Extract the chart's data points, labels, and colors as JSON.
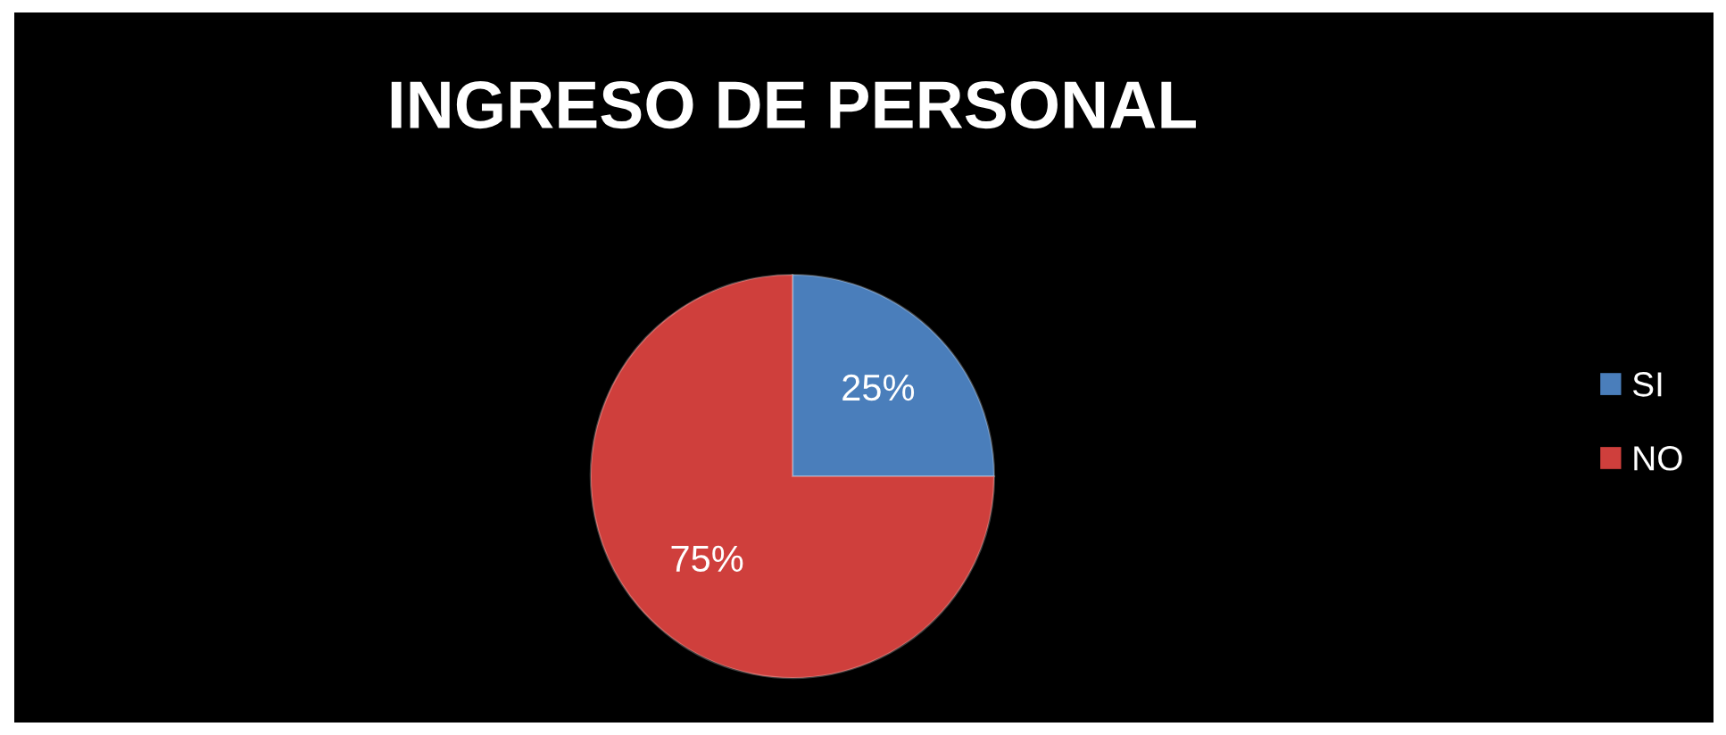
{
  "chart_data": {
    "type": "pie",
    "title": "INGRESO DE PERSONAL",
    "categories": [
      "SI",
      "NO"
    ],
    "values": [
      25,
      75
    ],
    "colors": [
      "#4a7ebb",
      "#cf3f3c"
    ],
    "value_labels": [
      "25%",
      "75%"
    ],
    "legend": "right"
  }
}
